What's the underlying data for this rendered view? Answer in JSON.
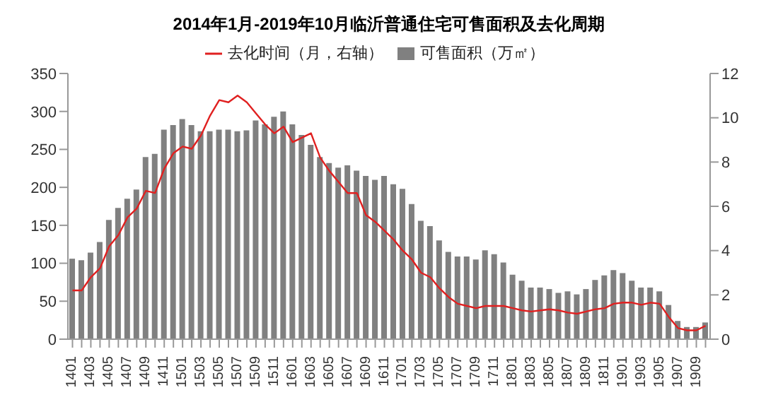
{
  "chart_data": {
    "type": "bar",
    "title": "2014年1月-2019年10月临沂普通住宅可售面积及去化周期",
    "categories": [
      "1401",
      null,
      "1403",
      null,
      "1405",
      null,
      "1407",
      null,
      "1409",
      null,
      "1411",
      null,
      "1501",
      null,
      "1503",
      null,
      "1505",
      null,
      "1507",
      null,
      "1509",
      null,
      "1511",
      null,
      "1601",
      null,
      "1603",
      null,
      "1605",
      null,
      "1607",
      null,
      "1609",
      null,
      "1611",
      null,
      "1701",
      null,
      "1703",
      null,
      "1705",
      null,
      "1707",
      null,
      "1709",
      null,
      "1711",
      null,
      "1801",
      null,
      "1803",
      null,
      "1805",
      null,
      "1807",
      null,
      "1809",
      null,
      "1811",
      null,
      "1901",
      null,
      "1903",
      null,
      "1905",
      null,
      "1907",
      null,
      "1909",
      null
    ],
    "series": [
      {
        "name": "可售面积（万㎡）",
        "color": "#808080",
        "values": [
          106,
          104,
          114,
          128,
          157,
          173,
          185,
          197,
          240,
          244,
          276,
          282,
          290,
          282,
          274,
          274,
          276,
          276,
          274,
          275,
          288,
          283,
          293,
          300,
          283,
          269,
          256,
          240,
          232,
          226,
          229,
          222,
          215,
          210,
          215,
          204,
          198,
          178,
          156,
          149,
          130,
          115,
          109,
          109,
          105,
          117,
          112,
          101,
          85,
          77,
          68,
          68,
          66,
          61,
          63,
          59,
          66,
          78,
          84,
          91,
          87,
          77,
          68,
          68,
          63,
          45,
          24,
          16,
          16,
          22
        ]
      },
      {
        "name": "去化时间（月，右轴）",
        "type": "line",
        "axis": "y2",
        "color": "#e02020",
        "values": [
          2.2,
          2.2,
          2.8,
          3.2,
          4.2,
          4.7,
          5.5,
          5.9,
          6.7,
          6.6,
          7.7,
          8.4,
          8.7,
          8.6,
          9.2,
          10.1,
          10.8,
          10.7,
          11.0,
          10.7,
          10.2,
          9.7,
          9.3,
          9.6,
          8.9,
          9.1,
          9.3,
          8.2,
          7.6,
          7.1,
          6.6,
          6.6,
          5.6,
          5.3,
          4.9,
          4.5,
          4.0,
          3.6,
          3.0,
          2.8,
          2.3,
          1.9,
          1.6,
          1.5,
          1.4,
          1.5,
          1.5,
          1.5,
          1.4,
          1.3,
          1.25,
          1.3,
          1.35,
          1.3,
          1.2,
          1.15,
          1.25,
          1.35,
          1.4,
          1.6,
          1.65,
          1.65,
          1.55,
          1.65,
          1.6,
          1.0,
          0.5,
          0.4,
          0.4,
          0.6
        ]
      }
    ],
    "ylim": [
      0,
      350
    ],
    "yticks": [
      0,
      50,
      100,
      150,
      200,
      250,
      300,
      350
    ],
    "y2lim": [
      0,
      12
    ],
    "y2ticks": [
      0,
      2,
      4,
      6,
      8,
      10,
      12
    ],
    "legend": "top",
    "marker": "none"
  }
}
